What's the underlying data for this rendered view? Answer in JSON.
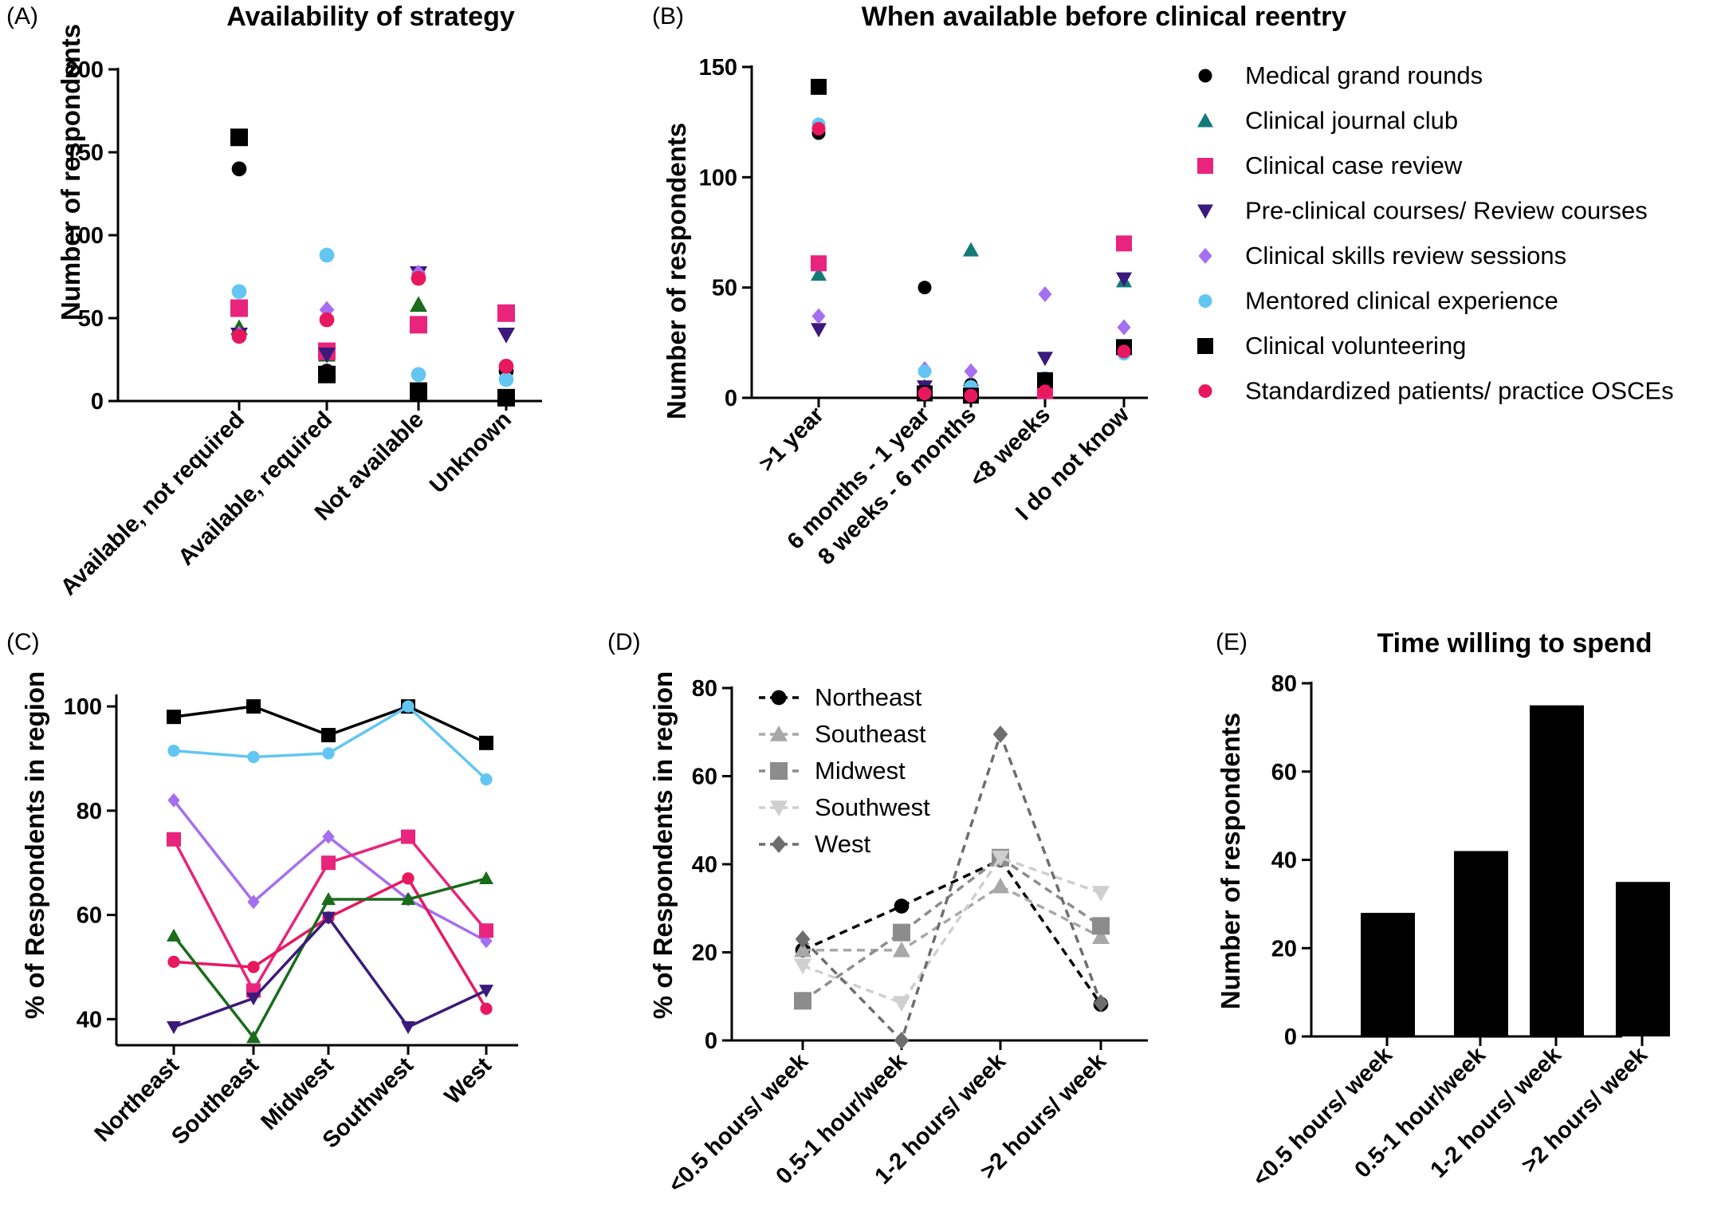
{
  "chart_data": [
    {
      "panel": "(A)",
      "type": "scatter",
      "title": "Availability of strategy",
      "xlabel": "",
      "ylabel": "Number of respondents",
      "ylim": [
        0,
        200
      ],
      "yticks": [
        "0",
        "50",
        "100",
        "150",
        "200"
      ],
      "categories": [
        "Available, not required",
        "Available, required",
        "Not available",
        "Unknown"
      ],
      "series": [
        {
          "name": "Medical grand rounds",
          "color": "#000000",
          "marker": "circle",
          "values": [
            140,
            18,
            5,
            18
          ]
        },
        {
          "name": "Clinical journal club",
          "color": "#1a6b1a",
          "marker": "triangle",
          "values": [
            44,
            28,
            58,
            53
          ]
        },
        {
          "name": "Clinical case review",
          "color": "#e8247c",
          "marker": "square",
          "values": [
            56,
            30,
            46,
            53
          ]
        },
        {
          "name": "Pre-clinical courses/ Review courses",
          "color": "#3a1a7a",
          "marker": "triangle-down",
          "values": [
            40,
            28,
            77,
            40
          ]
        },
        {
          "name": "Clinical skills review sessions",
          "color": "#a66ef0",
          "marker": "diamond",
          "values": [
            40,
            55,
            77,
            20
          ]
        },
        {
          "name": "Mentored clinical experience",
          "color": "#63c6f2",
          "marker": "circle",
          "values": [
            66,
            88,
            16,
            13
          ]
        },
        {
          "name": "Clinical volunteering",
          "color": "#000000",
          "marker": "square",
          "values": [
            159,
            16,
            6,
            2
          ]
        },
        {
          "name": "Standardized patients/ practice OSCEs",
          "color": "#e8185f",
          "marker": "circle",
          "values": [
            39,
            49,
            74,
            21
          ]
        }
      ]
    },
    {
      "panel": "(B)",
      "type": "scatter",
      "title": "When available before clinical reentry",
      "xlabel": "",
      "ylabel": "Number of respondents",
      "ylim": [
        0,
        150
      ],
      "yticks": [
        "0",
        "50",
        "100",
        "150"
      ],
      "categories": [
        ">1 year",
        "6 months - 1 year",
        "8 weeks - 6 months",
        "<8 weeks",
        "I do not know"
      ],
      "legend_position": "right",
      "series": [
        {
          "name": "Medical grand rounds",
          "color": "#000000",
          "marker": "circle",
          "values": [
            120,
            50,
            6,
            6,
            22
          ]
        },
        {
          "name": "Clinical journal club",
          "color": "#137a7a",
          "marker": "triangle",
          "values": [
            56,
            5,
            67,
            5,
            53
          ]
        },
        {
          "name": "Clinical case review",
          "color": "#e8247c",
          "marker": "square",
          "values": [
            61,
            2,
            1,
            3,
            70
          ]
        },
        {
          "name": "Pre-clinical courses/ Review courses",
          "color": "#3a1a7a",
          "marker": "triangle-down",
          "values": [
            31,
            5,
            3,
            18,
            54
          ]
        },
        {
          "name": "Clinical skills review sessions",
          "color": "#a66ef0",
          "marker": "diamond",
          "values": [
            37,
            13,
            12,
            47,
            32
          ]
        },
        {
          "name": "Mentored clinical experience",
          "color": "#63c6f2",
          "marker": "circle",
          "values": [
            124,
            12,
            5,
            9,
            20
          ]
        },
        {
          "name": "Clinical volunteering",
          "color": "#000000",
          "marker": "square",
          "values": [
            141,
            2,
            1,
            8,
            23
          ]
        },
        {
          "name": "Standardized patients/ practice OSCEs",
          "color": "#e8185f",
          "marker": "circle",
          "values": [
            122,
            2,
            1,
            3,
            21
          ]
        }
      ]
    },
    {
      "panel": "(C)",
      "type": "line",
      "title": "",
      "xlabel": "",
      "ylabel": "% of Respondents in region",
      "ylim": [
        35,
        102
      ],
      "yticks": [
        "40",
        "60",
        "80",
        "100"
      ],
      "categories": [
        "Northeast",
        "Southeast",
        "Midwest",
        "Southwest",
        "West"
      ],
      "series": [
        {
          "color": "#000000",
          "marker": "square",
          "values": [
            98,
            100,
            94.5,
            100,
            93
          ]
        },
        {
          "color": "#63c6f2",
          "marker": "circle",
          "values": [
            91.5,
            90.3,
            91,
            100,
            86
          ]
        },
        {
          "color": "#a66ef0",
          "marker": "diamond",
          "values": [
            82,
            62.5,
            75,
            63,
            55
          ]
        },
        {
          "color": "#e8247c",
          "marker": "square",
          "values": [
            74.5,
            45.5,
            70,
            75,
            57
          ]
        },
        {
          "color": "#e8185f",
          "marker": "circle",
          "values": [
            51,
            50,
            59.5,
            67,
            42
          ]
        },
        {
          "color": "#1a6b1a",
          "marker": "triangle",
          "values": [
            56,
            36.5,
            63,
            63,
            67
          ]
        },
        {
          "color": "#3a1a7a",
          "marker": "triangle-down",
          "values": [
            38.5,
            44,
            59.5,
            38.5,
            45.5
          ]
        }
      ]
    },
    {
      "panel": "(D)",
      "type": "line",
      "title": "",
      "xlabel": "",
      "ylabel": "% of Respondents in region",
      "ylim": [
        0,
        80
      ],
      "yticks": [
        "0",
        "20",
        "40",
        "60",
        "80"
      ],
      "categories": [
        "<0.5 hours/ week",
        "0.5-1 hour/week",
        "1-2 hours/ week",
        ">2 hours/ week"
      ],
      "legend_position": "top-left",
      "series": [
        {
          "name": "Northeast",
          "color": "#000000",
          "marker": "circle",
          "values": [
            20.5,
            30.5,
            41,
            8.2
          ]
        },
        {
          "name": "Southeast",
          "color": "#a8a8a8",
          "marker": "triangle",
          "values": [
            20.5,
            20.5,
            35,
            23.5
          ]
        },
        {
          "name": "Midwest",
          "color": "#8c8c8c",
          "marker": "square",
          "values": [
            9,
            24.5,
            41.5,
            26
          ]
        },
        {
          "name": "Southwest",
          "color": "#cfcfcf",
          "marker": "triangle-down",
          "values": [
            17,
            8.5,
            41.5,
            33.5
          ]
        },
        {
          "name": "West",
          "color": "#6e6e6e",
          "marker": "diamond",
          "values": [
            23,
            0,
            69.5,
            8.5
          ]
        }
      ]
    },
    {
      "panel": "(E)",
      "type": "bar",
      "title": "Time willing to spend",
      "xlabel": "",
      "ylabel": "Number of respondents",
      "ylim": [
        0,
        80
      ],
      "yticks": [
        "0",
        "20",
        "40",
        "60",
        "80"
      ],
      "categories": [
        "<0.5 hours/ week",
        "0.5-1 hour/week",
        "1-2 hours/ week",
        ">2 hours/ week"
      ],
      "values": [
        28,
        42,
        75,
        35
      ],
      "color": "#000000"
    }
  ]
}
